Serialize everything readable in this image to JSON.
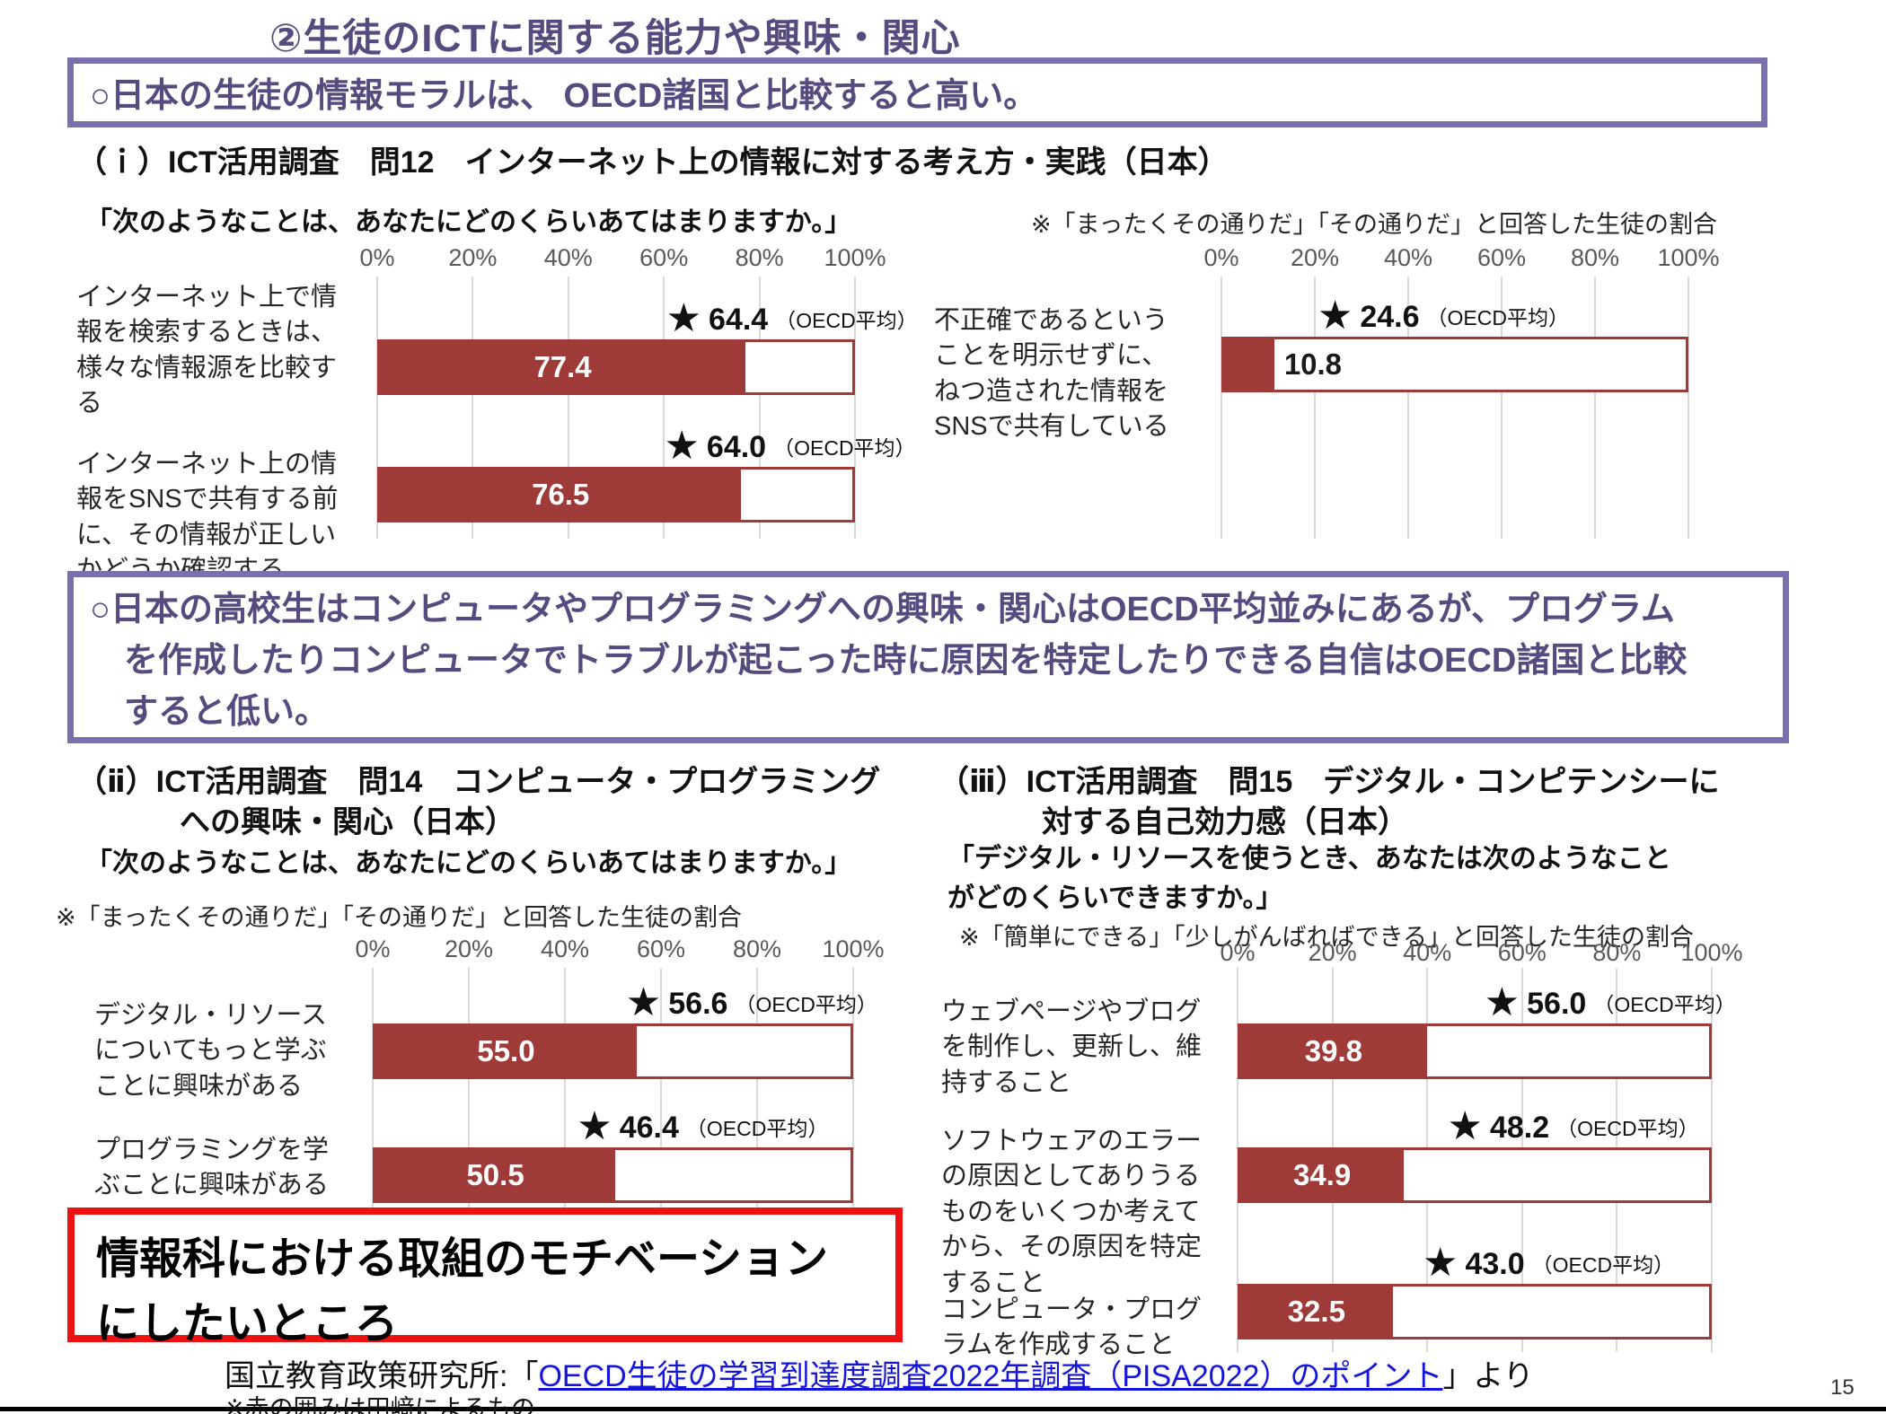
{
  "page": {
    "title": "②生徒のICTに関する能力や興味・関心",
    "page_number": "15"
  },
  "colors": {
    "accent_purple_text": "#564A7E",
    "purple_box_border": "#7C6FAE",
    "bar_maroon": "#9E3B39",
    "grid_gray": "#D9D9D9",
    "red_box_border": "#EE1111",
    "link_blue": "#1414DC"
  },
  "callouts": {
    "box1": "○日本の生徒の情報モラルは、 OECD諸国と比較すると高い。",
    "box2": "○日本の高校生はコンピュータやプログラミングへの興味・関心はOECD平均並みにあるが、プログラム\n　を作成したりコンピュータでトラブルが起こった時に原因を特定したりできる自信はOECD諸国と比較\n　すると低い。",
    "red_box": "情報科における取組のモチベーション\nにしたいところ"
  },
  "sections": {
    "s1": {
      "heading": "（ｉ）ICT活用調査　問12　インターネット上の情報に対する考え方・実践（日本）",
      "question": "「次のようなことは、あなたにどのくらいあてはまりますか。」",
      "note": "※「まったくその通りだ」「その通りだ」と回答した生徒の割合"
    },
    "s2": {
      "heading_line1": "（ⅱ）ICT活用調査　問14　コンピュータ・プログラミング",
      "heading_line2": "への興味・関心（日本）",
      "question": "「次のようなことは、あなたにどのくらいあてはまりますか。」",
      "note": "※「まったくその通りだ」「その通りだ」と回答した生徒の割合"
    },
    "s3": {
      "heading_line1": "（ⅲ）ICT活用調査　問15　デジタル・コンピテンシーに",
      "heading_line2": "対する自己効力感（日本）",
      "question": "「デジタル・リソースを使うとき、あなたは次のようなこと\nがどのくらいできますか。」",
      "note": "※「簡単にできる」「少しがんばればできる」と回答した生徒の割合"
    }
  },
  "footer": {
    "source_prefix": "国立教育政策研究所:「",
    "source_link": "OECD生徒の学習到達度調査2022年調査（PISA2022）のポイント",
    "source_suffix": "」より",
    "note": "※赤の囲みは田﨑によるもの"
  },
  "chart_data": [
    {
      "id": "q12-internet-information-japan",
      "type": "bar",
      "orientation": "horizontal",
      "xlim": [
        0,
        100
      ],
      "x_ticks": [
        "0%",
        "20%",
        "40%",
        "60%",
        "80%",
        "100%"
      ],
      "grid": true,
      "bar_color": "#9E3B39",
      "marker_legend": "★ = OECD平均",
      "rows": [
        {
          "label": "インターネット上で情\n報を検索するときは、\n様々な情報源を比較す\nる",
          "japan": 77.4,
          "japan_label": "77.4",
          "oecd": 64.4,
          "oecd_label": "64.4",
          "oecd_suffix": "（OECD平均）"
        },
        {
          "label": "インターネット上の情\n報をSNSで共有する前\nに、その情報が正しい\nかどうか確認する",
          "japan": 76.5,
          "japan_label": "76.5",
          "oecd": 64.0,
          "oecd_label": "64.0",
          "oecd_suffix": "（OECD平均）"
        }
      ]
    },
    {
      "id": "q12-sns-sharing-japan",
      "type": "bar",
      "orientation": "horizontal",
      "xlim": [
        0,
        100
      ],
      "x_ticks": [
        "0%",
        "20%",
        "40%",
        "60%",
        "80%",
        "100%"
      ],
      "grid": true,
      "bar_color": "#9E3B39",
      "marker_legend": "★ = OECD平均",
      "rows": [
        {
          "label": "不正確であるという\nことを明示せずに、\nねつ造された情報を\nSNSで共有している",
          "japan": 10.8,
          "japan_label": "10.8",
          "oecd": 24.6,
          "oecd_label": "24.6",
          "oecd_suffix": "（OECD平均）"
        }
      ]
    },
    {
      "id": "q14-computer-programming-interest-japan",
      "type": "bar",
      "orientation": "horizontal",
      "xlim": [
        0,
        100
      ],
      "x_ticks": [
        "0%",
        "20%",
        "40%",
        "60%",
        "80%",
        "100%"
      ],
      "grid": true,
      "bar_color": "#9E3B39",
      "marker_legend": "★ = OECD平均",
      "rows": [
        {
          "label": "デジタル・リソース\nについてもっと学ぶ\nことに興味がある",
          "japan": 55.0,
          "japan_label": "55.0",
          "oecd": 56.6,
          "oecd_label": "56.6",
          "oecd_suffix": "（OECD平均）"
        },
        {
          "label": "プログラミングを学\nぶことに興味がある",
          "japan": 50.5,
          "japan_label": "50.5",
          "oecd": 46.4,
          "oecd_label": "46.4",
          "oecd_suffix": "（OECD平均）"
        }
      ]
    },
    {
      "id": "q15-digital-competency-self-efficacy-japan",
      "type": "bar",
      "orientation": "horizontal",
      "xlim": [
        0,
        100
      ],
      "x_ticks": [
        "0%",
        "20%",
        "40%",
        "60%",
        "80%",
        "100%"
      ],
      "grid": true,
      "bar_color": "#9E3B39",
      "marker_legend": "★ = OECD平均",
      "rows": [
        {
          "label": "ウェブページやブログ\nを制作し、更新し、維\n持すること",
          "japan": 39.8,
          "japan_label": "39.8",
          "oecd": 56.0,
          "oecd_label": "56.0",
          "oecd_suffix": "（OECD平均）"
        },
        {
          "label": "ソフトウェアのエラー\nの原因としてありうる\nものをいくつか考えて\nから、その原因を特定\nすること",
          "japan": 34.9,
          "japan_label": "34.9",
          "oecd": 48.2,
          "oecd_label": "48.2",
          "oecd_suffix": "（OECD平均）"
        },
        {
          "label": "コンピュータ・プログ\nラムを作成すること",
          "japan": 32.5,
          "japan_label": "32.5",
          "oecd": 43.0,
          "oecd_label": "43.0",
          "oecd_suffix": "（OECD平均）"
        }
      ]
    }
  ]
}
